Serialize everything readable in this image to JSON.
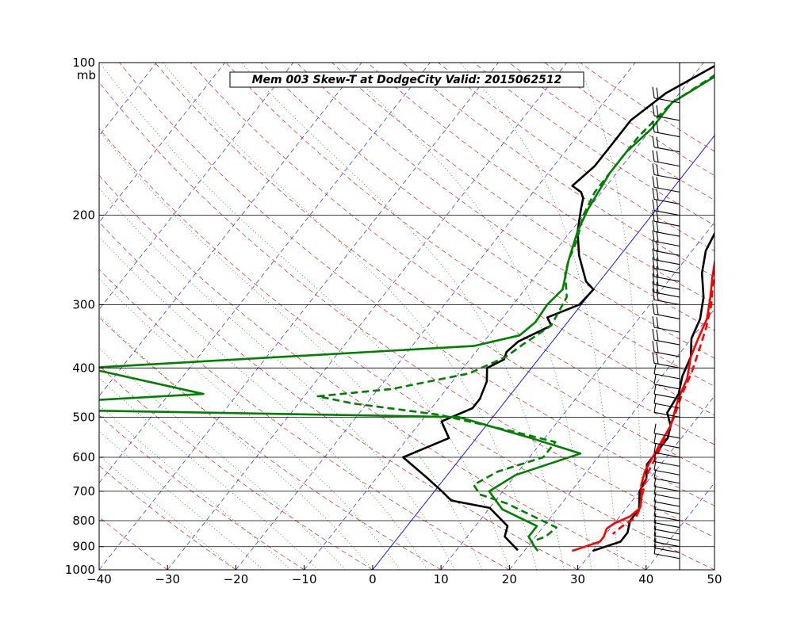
{
  "chart_data": {
    "type": "line",
    "title": "Mem 003  Skew-T at DodgeCity   Valid: 2015062512",
    "xlabel": "",
    "ylabel": "mb",
    "xlim": [
      -40,
      50
    ],
    "ylim": [
      1000,
      100
    ],
    "y_scale": "log",
    "x_ticks": [
      -40,
      -30,
      -20,
      -10,
      0,
      10,
      20,
      30,
      40,
      50
    ],
    "y_ticks": [
      100,
      200,
      300,
      400,
      500,
      600,
      700,
      800,
      900,
      1000
    ],
    "grid": "isobars only",
    "background_lines": {
      "isotherms": {
        "color": "#0000ff",
        "style": "dashed",
        "zero_isotherm": "solid"
      },
      "dry_adiabats": {
        "color": "#cc0000",
        "style": "dashed"
      },
      "moist_adiabats": {
        "color": "#008000",
        "style": "dotted"
      }
    },
    "series": [
      {
        "color": "#000000",
        "style": "solid",
        "kind": "temperature",
        "points": [
          [
            -7.5,
            100
          ],
          [
            -12,
            115
          ],
          [
            -14,
            130
          ],
          [
            -14,
            145
          ],
          [
            -14,
            160
          ],
          [
            -15,
            175
          ],
          [
            -13,
            180
          ],
          [
            -12,
            185
          ],
          [
            -11,
            195
          ],
          [
            -9,
            215
          ],
          [
            -6,
            240
          ],
          [
            -2,
            270
          ],
          [
            0,
            280
          ],
          [
            -0.3,
            300
          ],
          [
            -3.5,
            318
          ],
          [
            -2,
            330
          ],
          [
            -5,
            355
          ],
          [
            -5.5,
            372
          ],
          [
            -5,
            385
          ],
          [
            -6.5,
            400
          ],
          [
            -5,
            425
          ],
          [
            -4,
            460
          ],
          [
            -4,
            480
          ],
          [
            -7,
            510
          ],
          [
            -4,
            550
          ],
          [
            -8.5,
            600
          ],
          [
            -2.5,
            660
          ],
          [
            1.5,
            705
          ],
          [
            3.5,
            730
          ],
          [
            10,
            755
          ],
          [
            14.7,
            820
          ],
          [
            15.5,
            860
          ],
          [
            19,
            915
          ]
        ]
      },
      {
        "color": "#000000",
        "style": "solid",
        "kind": "temperature",
        "points": [
          [
            14,
            100
          ],
          [
            11,
            120
          ],
          [
            11,
            135
          ],
          [
            11,
            150
          ],
          [
            10,
            168
          ],
          [
            10,
            178
          ],
          [
            10,
            192
          ],
          [
            11,
            210
          ],
          [
            12,
            235
          ],
          [
            14,
            260
          ],
          [
            17,
            290
          ],
          [
            19,
            320
          ],
          [
            20,
            350
          ],
          [
            22,
            380
          ],
          [
            23,
            415
          ],
          [
            24.5,
            450
          ],
          [
            25,
            490
          ],
          [
            27,
            520
          ],
          [
            28,
            550
          ],
          [
            28,
            580
          ],
          [
            28,
            620
          ],
          [
            29.5,
            660
          ],
          [
            30,
            700
          ],
          [
            32,
            760
          ],
          [
            32,
            800
          ],
          [
            33,
            845
          ],
          [
            33,
            880
          ],
          [
            31,
            905
          ],
          [
            30,
            918
          ]
        ]
      },
      {
        "color": "#ff0000",
        "style": "solid",
        "kind": "temperature",
        "points": [
          [
            15,
            100
          ],
          [
            14,
            120
          ],
          [
            13,
            140
          ],
          [
            12,
            160
          ],
          [
            11,
            180
          ],
          [
            11,
            195
          ],
          [
            12,
            215
          ],
          [
            14,
            240
          ],
          [
            16,
            265
          ],
          [
            18,
            290
          ],
          [
            20,
            320
          ],
          [
            21,
            350
          ],
          [
            22,
            380
          ],
          [
            24,
            420
          ],
          [
            25,
            460
          ],
          [
            27,
            520
          ],
          [
            27.5,
            560
          ],
          [
            28,
            600
          ],
          [
            28.5,
            640
          ],
          [
            29.5,
            680
          ],
          [
            31,
            720
          ],
          [
            32,
            755
          ],
          [
            31.5,
            785
          ],
          [
            30,
            810
          ],
          [
            29.5,
            830
          ],
          [
            30,
            860
          ],
          [
            30,
            880
          ],
          [
            28,
            905
          ],
          [
            27,
            918
          ]
        ]
      },
      {
        "color": "#ff0000",
        "style": "dashed",
        "kind": "temperature",
        "points": [
          [
            15,
            100
          ],
          [
            13,
            120
          ],
          [
            12,
            140
          ],
          [
            11,
            160
          ],
          [
            11,
            180
          ],
          [
            11.5,
            200
          ],
          [
            13,
            225
          ],
          [
            15,
            250
          ],
          [
            17,
            275
          ],
          [
            19,
            300
          ],
          [
            21,
            335
          ],
          [
            22.5,
            370
          ],
          [
            24,
            410
          ],
          [
            25,
            450
          ],
          [
            26.5,
            500
          ],
          [
            27.5,
            545
          ],
          [
            28.5,
            600
          ],
          [
            29,
            640
          ],
          [
            30,
            680
          ],
          [
            31,
            720
          ],
          [
            32,
            755
          ],
          [
            32.5,
            790
          ],
          [
            31.5,
            820
          ],
          [
            31,
            850
          ]
        ]
      },
      {
        "color": "#008000",
        "style": "solid",
        "kind": "dewpoint",
        "points": [
          [
            -5,
            100
          ],
          [
            -10,
            120
          ],
          [
            -10,
            135
          ],
          [
            -11,
            150
          ],
          [
            -11,
            165
          ],
          [
            -10.5,
            180
          ],
          [
            -10,
            195
          ],
          [
            -9,
            215
          ],
          [
            -7,
            245
          ],
          [
            -4.5,
            280
          ],
          [
            -5,
            300
          ],
          [
            -4.7,
            325
          ],
          [
            -5.5,
            345
          ],
          [
            -11,
            362
          ],
          [
            -65,
            400
          ],
          [
            -45,
            450
          ],
          [
            -80,
            480
          ],
          [
            -5,
            500
          ],
          [
            8,
            550
          ],
          [
            17,
            590
          ],
          [
            10,
            650
          ],
          [
            8,
            700
          ],
          [
            12,
            760
          ],
          [
            19,
            820
          ],
          [
            19,
            860
          ],
          [
            21,
            900
          ],
          [
            22,
            918
          ]
        ]
      },
      {
        "color": "#008000",
        "style": "dashed",
        "kind": "dewpoint",
        "points": [
          [
            -5.5,
            100
          ],
          [
            -10,
            120
          ],
          [
            -11,
            140
          ],
          [
            -11,
            160
          ],
          [
            -11,
            180
          ],
          [
            -10,
            200
          ],
          [
            -8,
            225
          ],
          [
            -7,
            245
          ],
          [
            -6,
            260
          ],
          [
            -3,
            290
          ],
          [
            -2.5,
            310
          ],
          [
            -2,
            330
          ],
          [
            -4,
            360
          ],
          [
            -5,
            380
          ],
          [
            -8.5,
            410
          ],
          [
            -18,
            440
          ],
          [
            -28,
            455
          ],
          [
            -22,
            470
          ],
          [
            -8,
            495
          ],
          [
            5,
            535
          ],
          [
            12,
            560
          ],
          [
            12,
            600
          ],
          [
            7,
            640
          ],
          [
            5,
            680
          ],
          [
            7,
            710
          ],
          [
            12,
            740
          ],
          [
            18,
            790
          ],
          [
            22,
            825
          ],
          [
            21.5,
            860
          ],
          [
            20,
            880
          ]
        ]
      }
    ],
    "wind_barbs": "vertical profile along right axis, 100-1000 mb"
  }
}
